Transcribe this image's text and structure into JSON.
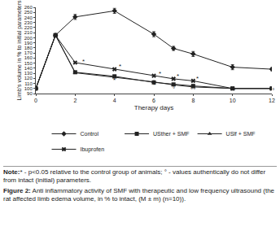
{
  "chart_data": {
    "type": "line",
    "x_label": "Therapy days",
    "y_label": "Limb's volume in % to initial parameters",
    "x": [
      0,
      1,
      2,
      4,
      6,
      7,
      8,
      10,
      12
    ],
    "xlim": [
      0,
      12
    ],
    "xticks": [
      0,
      2,
      4,
      6,
      8,
      10,
      12
    ],
    "ylim": [
      90,
      260
    ],
    "yticks": [
      90,
      100,
      110,
      120,
      130,
      140,
      150,
      160,
      170,
      180,
      190,
      200,
      210,
      220,
      230,
      240,
      250,
      260
    ],
    "legend": "bottom",
    "grid": false,
    "series": [
      {
        "name": "Control",
        "color": "#222222",
        "marker": "diamond",
        "values": [
          100,
          205,
          241,
          253,
          207,
          179,
          168,
          142,
          138
        ],
        "errors": [
          0,
          3,
          5,
          5,
          5,
          4,
          5,
          5,
          3
        ]
      },
      {
        "name": "USther + SMF",
        "color": "#222222",
        "marker": "square",
        "values": [
          100,
          205,
          132,
          124,
          112,
          108,
          105,
          100,
          100
        ]
      },
      {
        "name": "USlf + SMF",
        "color": "#222222",
        "marker": "triangle-up",
        "values": [
          100,
          205,
          131,
          122,
          113,
          107,
          103,
          100,
          100
        ]
      },
      {
        "name": "Ibuprofen",
        "color": "#222222",
        "marker": "x",
        "values": [
          100,
          205,
          151,
          138,
          125,
          119,
          115,
          100,
          100
        ]
      }
    ],
    "annotations": [
      {
        "x": 2.4,
        "y": 154,
        "text": "*"
      },
      {
        "x": 4.3,
        "y": 143,
        "text": "*"
      },
      {
        "x": 6.3,
        "y": 130,
        "text": "*"
      },
      {
        "x": 7.2,
        "y": 124,
        "text": "*"
      },
      {
        "x": 8.2,
        "y": 120,
        "text": "*"
      },
      {
        "x": 4.0,
        "y": 116,
        "text": "*"
      },
      {
        "x": 6.0,
        "y": 107,
        "text": "*"
      },
      {
        "x": 7.0,
        "y": 99,
        "text": "°"
      },
      {
        "x": 8.0,
        "y": 97,
        "text": "°°"
      },
      {
        "x": 10.0,
        "y": 96,
        "text": "°°"
      },
      {
        "x": 12.0,
        "y": 96,
        "text": "°°"
      }
    ]
  },
  "note_label": "Note:",
  "note": "* - p<0.05 relative to the control group of animals; ° - values authentically do not differ from intact (initial) parameters.",
  "caption_label": "Figure 2:",
  "caption": "Anti inflammatory activity of SMF with therapeutic and low frequency ultrasound (the rat affected limb edema volume, in % to intact, (M ± m) (n=10))."
}
